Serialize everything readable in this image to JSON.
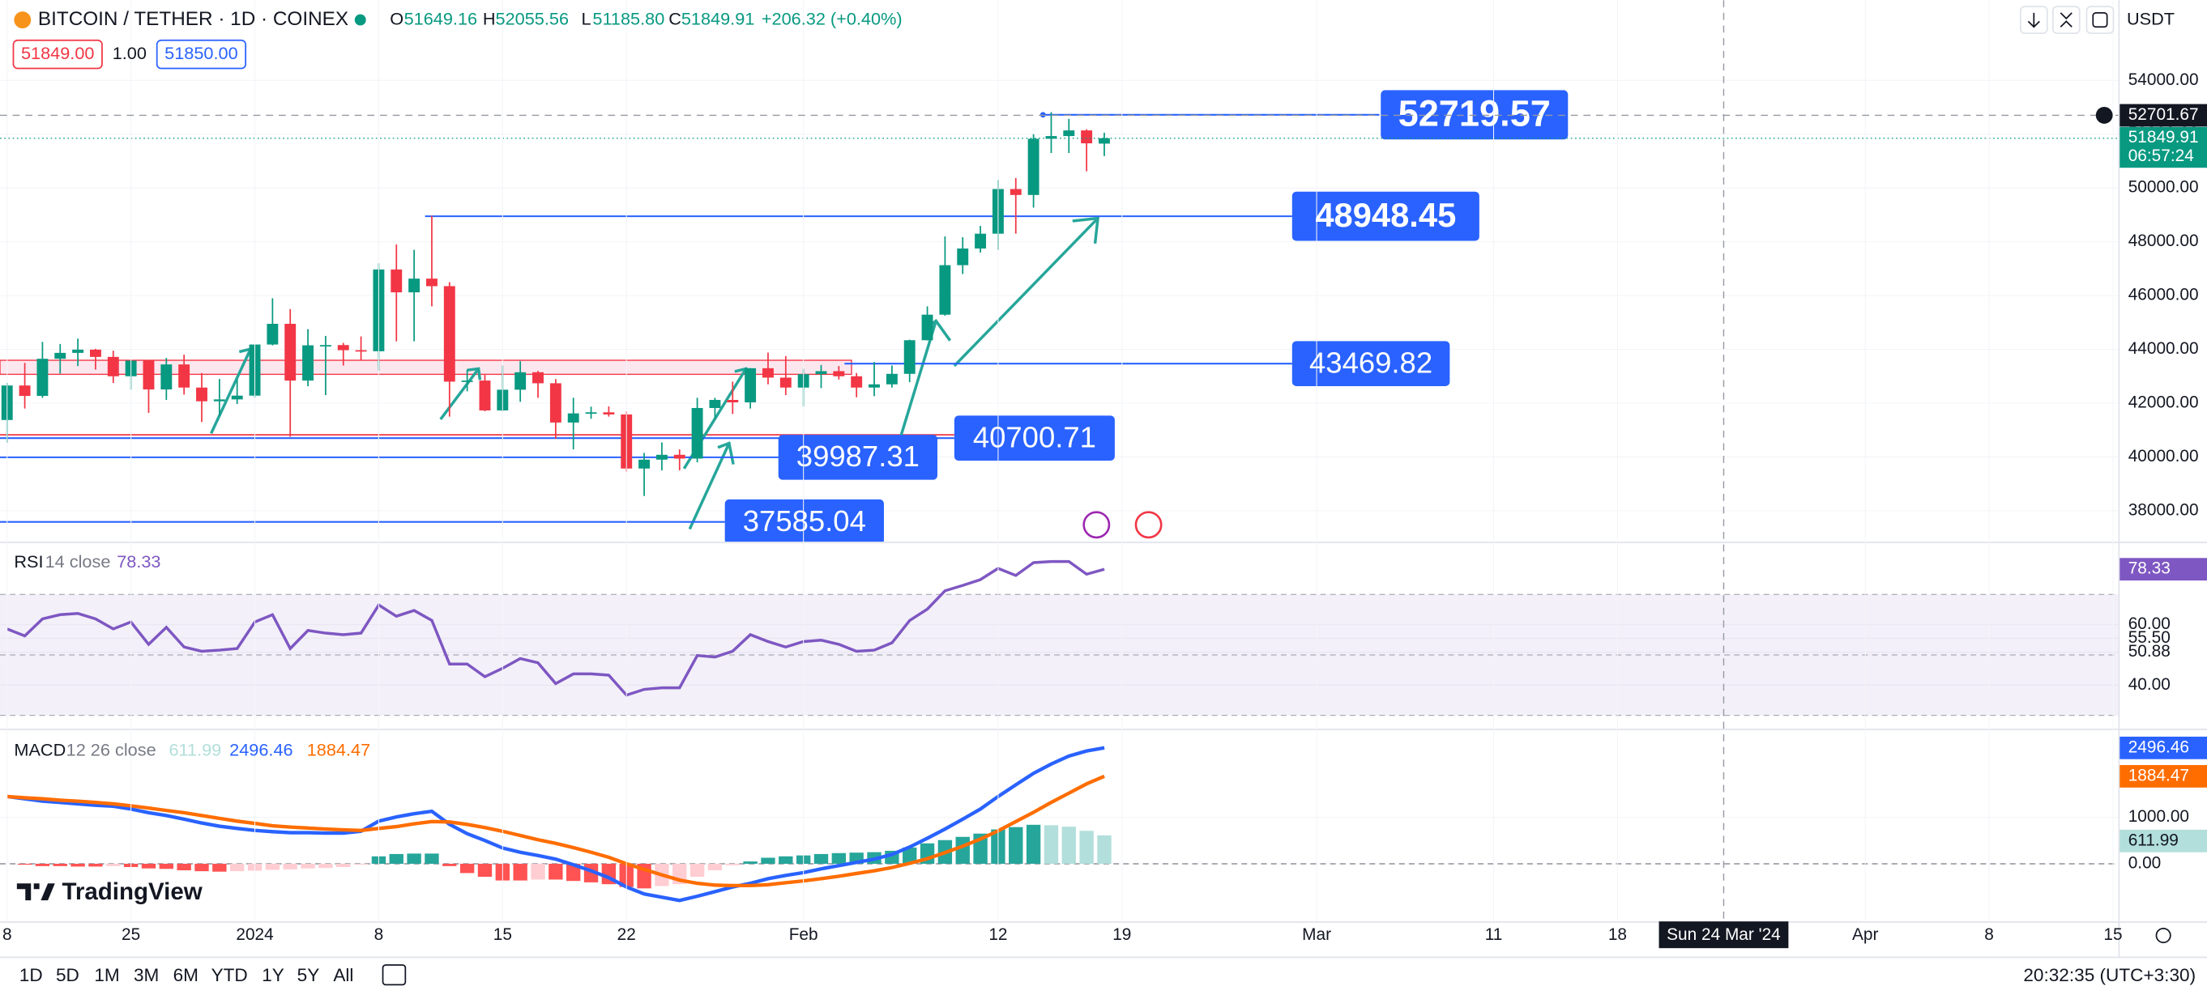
{
  "header": {
    "symbol": "BITCOIN / TETHER · 1D · COINEX",
    "o": "O",
    "open": "51649.16",
    "h": "H",
    "high": "52055.56",
    "l": "L",
    "low": "51185.80",
    "c": "C",
    "close": "51849.91",
    "change": "+206.32 (+0.40%)",
    "bid": "51849.00",
    "spread": "1.00",
    "ask": "51850.00",
    "currency": "USDT"
  },
  "chart": {
    "type": "candlestick",
    "up_color": "#089981",
    "down_color": "#f23645",
    "candles": [
      [
        41374,
        42756,
        40530,
        42657
      ],
      [
        42657,
        43497,
        41800,
        42270
      ],
      [
        42270,
        44280,
        42200,
        43650
      ],
      [
        43650,
        44200,
        43100,
        43870
      ],
      [
        43870,
        44400,
        43380,
        43990
      ],
      [
        43990,
        44020,
        43250,
        43720
      ],
      [
        43720,
        43950,
        42750,
        43000
      ],
      [
        43000,
        43600,
        42500,
        43580
      ],
      [
        43580,
        43600,
        41640,
        42510
      ],
      [
        42510,
        43680,
        42120,
        43440
      ],
      [
        43440,
        43800,
        42320,
        42580
      ],
      [
        42580,
        43120,
        41300,
        42070
      ],
      [
        42070,
        42900,
        41530,
        42140
      ],
      [
        42140,
        42880,
        41970,
        42280
      ],
      [
        42280,
        44180,
        42200,
        44180
      ],
      [
        44180,
        45900,
        44150,
        44950
      ],
      [
        44950,
        45500,
        40750,
        42840
      ],
      [
        42840,
        44750,
        42630,
        44150
      ],
      [
        44150,
        44500,
        42300,
        44160
      ],
      [
        44160,
        44240,
        43400,
        43970
      ],
      [
        43970,
        44480,
        43600,
        43930
      ],
      [
        43930,
        47200,
        43200,
        46970
      ],
      [
        46970,
        47900,
        44300,
        46120
      ],
      [
        46120,
        47700,
        44300,
        46630
      ],
      [
        46630,
        48970,
        45600,
        46350
      ],
      [
        46350,
        46500,
        41500,
        42800
      ],
      [
        42800,
        43250,
        42440,
        42840
      ],
      [
        42840,
        43050,
        41700,
        41730
      ],
      [
        41730,
        43400,
        41700,
        42500
      ],
      [
        42500,
        43560,
        42050,
        43150
      ],
      [
        43150,
        43200,
        42200,
        42740
      ],
      [
        42740,
        42900,
        40680,
        41280
      ],
      [
        41280,
        42200,
        40280,
        41620
      ],
      [
        41620,
        41870,
        41420,
        41660
      ],
      [
        41660,
        41880,
        41500,
        41580
      ],
      [
        41580,
        41700,
        39450,
        39570
      ],
      [
        39570,
        40150,
        38550,
        39900
      ],
      [
        39900,
        40540,
        39500,
        40080
      ],
      [
        40080,
        40280,
        39500,
        39940
      ],
      [
        39940,
        42200,
        39800,
        41820
      ],
      [
        41820,
        42200,
        41400,
        42120
      ],
      [
        42120,
        42800,
        41600,
        42030
      ],
      [
        42030,
        43300,
        41800,
        43300
      ],
      [
        43300,
        43880,
        42700,
        42950
      ],
      [
        42950,
        43750,
        42300,
        42580
      ],
      [
        42580,
        43280,
        41880,
        43080
      ],
      [
        43080,
        43420,
        42560,
        43190
      ],
      [
        43190,
        43380,
        42880,
        43000
      ],
      [
        43000,
        43120,
        42220,
        42580
      ],
      [
        42580,
        43530,
        42260,
        42700
      ],
      [
        42700,
        43400,
        42580,
        43090
      ],
      [
        43090,
        44360,
        42780,
        44340
      ],
      [
        44340,
        45600,
        44330,
        45290
      ],
      [
        45290,
        48200,
        45250,
        47130
      ],
      [
        47130,
        48170,
        46800,
        47750
      ],
      [
        47750,
        48590,
        47600,
        48300
      ],
      [
        48300,
        50300,
        47700,
        49960
      ],
      [
        49960,
        50370,
        48300,
        49740
      ],
      [
        49740,
        52000,
        49270,
        51830
      ],
      [
        51830,
        52820,
        51300,
        51930
      ],
      [
        51930,
        52570,
        51300,
        52140
      ],
      [
        52140,
        52180,
        50620,
        51660
      ],
      [
        51649.16,
        52055.56,
        51185.8,
        51849.91
      ]
    ],
    "xlim": [
      -0.4,
      119.3
    ],
    "xticks": [
      {
        "value": 0,
        "label": "8"
      },
      {
        "value": 7,
        "label": "25"
      },
      {
        "value": 14,
        "label": "2024"
      },
      {
        "value": 21,
        "label": "8"
      },
      {
        "value": 28,
        "label": "15"
      },
      {
        "value": 35,
        "label": "22"
      },
      {
        "value": 45,
        "label": "Feb"
      },
      {
        "value": 56,
        "label": "12"
      },
      {
        "value": 63,
        "label": "19"
      },
      {
        "value": 74,
        "label": "Mar"
      },
      {
        "value": 84,
        "label": "11"
      },
      {
        "value": 91,
        "label": "18"
      },
      {
        "value": 105,
        "label": "Apr"
      },
      {
        "value": 112,
        "label": "8"
      },
      {
        "value": 119,
        "label": "15"
      }
    ],
    "ylim": [
      36850,
      56980
    ],
    "yticks": [
      {
        "value": 54000,
        "label": "54000.00"
      },
      {
        "value": 52000,
        "label": "52000.00"
      },
      {
        "value": 50000,
        "label": "50000.00"
      },
      {
        "value": 48000,
        "label": "48000.00"
      },
      {
        "value": 46000,
        "label": "46000.00"
      },
      {
        "value": 44000,
        "label": "44000.00"
      },
      {
        "value": 42000,
        "label": "42000.00"
      },
      {
        "value": 40000,
        "label": "40000.00"
      },
      {
        "value": 38000,
        "label": "38000.00"
      }
    ],
    "levels": [
      52719.57,
      48948.45,
      43469.82,
      40700.71,
      39987.31,
      37585.04
    ],
    "level_color": "#2962ff",
    "crosshair": {
      "price": 52701.67,
      "x": 97,
      "date": "Sun 24 Mar '24"
    },
    "countdown": "06:57:24",
    "rsi": {
      "name": "RSI",
      "params": "14 close",
      "color": "#7e57c2",
      "ylim": [
        25.58,
        86.98
      ],
      "band": [
        70,
        50,
        30
      ],
      "yticks": [
        {
          "value": 60,
          "label": "60.00"
        },
        {
          "value": 55.5,
          "label": "55.50"
        },
        {
          "value": 50.88,
          "label": "50.88"
        },
        {
          "value": 40,
          "label": "40.00"
        }
      ],
      "values": [
        58.6,
        56.3,
        61.9,
        63.3,
        63.7,
        61.9,
        58.6,
        60.9,
        53.5,
        59.1,
        52.6,
        51.2,
        51.6,
        52.1,
        60.9,
        63.3,
        52.1,
        58.1,
        57.2,
        56.7,
        57.2,
        66.5,
        62.8,
        64.7,
        61.4,
        47.0,
        47.0,
        42.8,
        45.6,
        48.8,
        47.4,
        40.5,
        43.7,
        43.7,
        43.3,
        36.7,
        38.6,
        39.1,
        39.1,
        49.8,
        49.3,
        51.2,
        56.7,
        54.4,
        52.6,
        54.4,
        54.9,
        53.5,
        51.2,
        51.6,
        54.0,
        61.4,
        65.1,
        71.2,
        73.0,
        74.9,
        78.6,
        76.3,
        80.5,
        80.9,
        80.9,
        76.7,
        78.33
      ]
    },
    "macd": {
      "name": "MACD",
      "params": "12 26 close",
      "ylim": [
        -1242,
        2879
      ],
      "yticks": [
        {
          "value": 1000,
          "label": "1000.00"
        },
        {
          "value": 0,
          "label": "0.00"
        }
      ],
      "hist_colors": [
        "#26a69a",
        "#b2dfdb",
        "#ff5252",
        "#ffcdd2"
      ],
      "histogram": [
        0,
        -20,
        -50,
        -50,
        -60,
        -60,
        -50,
        -70,
        -100,
        -110,
        -140,
        -160,
        -170,
        -160,
        -150,
        -130,
        -120,
        -100,
        -90,
        -70,
        -20,
        160,
        210,
        220,
        220,
        -50,
        -200,
        -280,
        -360,
        -360,
        -340,
        -340,
        -370,
        -400,
        -440,
        -500,
        -530,
        -480,
        -440,
        -280,
        -140,
        -30,
        50,
        130,
        160,
        180,
        210,
        230,
        240,
        250,
        280,
        350,
        440,
        510,
        580,
        650,
        740,
        790,
        840,
        830,
        800,
        710,
        611.99
      ],
      "series": [
        {
          "color": "#2962ff",
          "values": [
            1450,
            1400,
            1350,
            1320,
            1290,
            1260,
            1240,
            1180,
            1100,
            1040,
            960,
            880,
            810,
            760,
            720,
            690,
            670,
            670,
            660,
            660,
            700,
            920,
            1010,
            1080,
            1130,
            850,
            650,
            500,
            340,
            250,
            180,
            100,
            -20,
            -150,
            -300,
            -500,
            -650,
            -720,
            -790,
            -700,
            -600,
            -500,
            -420,
            -320,
            -250,
            -190,
            -110,
            -40,
            30,
            100,
            200,
            360,
            550,
            750,
            960,
            1180,
            1450,
            1700,
            1950,
            2150,
            2320,
            2430,
            2496.46
          ]
        },
        {
          "color": "#ff6d00",
          "values": [
            1450,
            1420,
            1400,
            1370,
            1350,
            1320,
            1290,
            1250,
            1200,
            1150,
            1100,
            1040,
            980,
            920,
            870,
            820,
            790,
            770,
            750,
            730,
            720,
            760,
            800,
            860,
            910,
            900,
            850,
            780,
            700,
            610,
            520,
            440,
            350,
            250,
            140,
            0,
            -120,
            -240,
            -350,
            -420,
            -460,
            -470,
            -470,
            -450,
            -410,
            -370,
            -320,
            -270,
            -210,
            -150,
            -80,
            10,
            110,
            240,
            380,
            530,
            710,
            910,
            1110,
            1320,
            1520,
            1720,
            1884.47
          ]
        }
      ]
    }
  },
  "logo": "TradingView",
  "toolbar": {
    "ranges": [
      "1D",
      "5D",
      "1M",
      "3M",
      "6M",
      "YTD",
      "1Y",
      "5Y",
      "All"
    ],
    "clock": "20:32:35 (UTC+3:30)"
  }
}
